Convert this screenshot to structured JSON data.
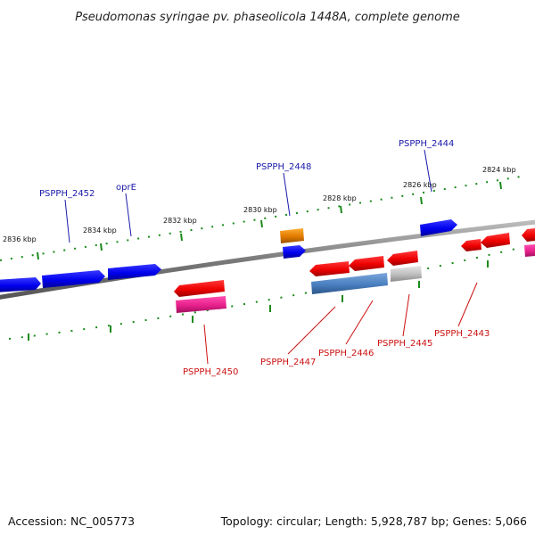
{
  "title": "Pseudomonas syringae pv. phaseolicola 1448A, complete genome",
  "footer": {
    "accession": "Accession: NC_005773",
    "summary": "Topology: circular; Length: 5,928,787 bp; Genes: 5,066"
  },
  "colors": {
    "forward_gene": "#1010e8",
    "reverse_gene": "#e81010",
    "pink_gene": "#e8208c",
    "steel_gene": "#4a7fc0",
    "grey_gene": "#bbbbbb",
    "orange_gene": "#e07a00",
    "backbone": "#777777",
    "ticks": "#1a8a1a",
    "label_fwd": "#1a1aaa",
    "label_rev": "#cc1111"
  },
  "ticks": [
    {
      "label": "2836 kbp"
    },
    {
      "label": "2834 kbp"
    },
    {
      "label": "2832 kbp"
    },
    {
      "label": "2830 kbp"
    },
    {
      "label": "2828 kbp"
    },
    {
      "label": "2826 kbp"
    },
    {
      "label": "2824 kbp"
    }
  ],
  "genes": [
    {
      "id": "fwd-1",
      "strand": "forward",
      "color": "forward_gene"
    },
    {
      "id": "fwd-2",
      "strand": "forward",
      "color": "forward_gene"
    },
    {
      "id": "fwd-3",
      "strand": "forward",
      "color": "forward_gene"
    },
    {
      "id": "fwd-4",
      "strand": "forward",
      "color": "forward_gene"
    },
    {
      "id": "fwd-5",
      "strand": "forward",
      "color": "forward_gene"
    },
    {
      "id": "orange",
      "strand": "forward",
      "color": "orange_gene"
    },
    {
      "id": "rev-2450-red",
      "strand": "reverse",
      "color": "reverse_gene"
    },
    {
      "id": "rev-2450-pink",
      "strand": "reverse",
      "color": "pink_gene"
    },
    {
      "id": "rev-2447-red",
      "strand": "reverse",
      "color": "reverse_gene"
    },
    {
      "id": "rev-2447-steel",
      "strand": "reverse",
      "color": "steel_gene"
    },
    {
      "id": "rev-2446-red",
      "strand": "reverse",
      "color": "reverse_gene"
    },
    {
      "id": "rev-2445-red",
      "strand": "reverse",
      "color": "reverse_gene"
    },
    {
      "id": "rev-2445-grey",
      "strand": "reverse",
      "color": "grey_gene"
    },
    {
      "id": "rev-2443-a",
      "strand": "reverse",
      "color": "reverse_gene"
    },
    {
      "id": "rev-2443-b",
      "strand": "reverse",
      "color": "reverse_gene"
    },
    {
      "id": "rev-edge-red",
      "strand": "reverse",
      "color": "reverse_gene"
    },
    {
      "id": "rev-edge-pink",
      "strand": "reverse",
      "color": "pink_gene"
    }
  ],
  "labels": {
    "forward": [
      "PSPPH_2452",
      "oprE",
      "PSPPH_2448",
      "PSPPH_2444"
    ],
    "reverse": [
      "PSPPH_2450",
      "PSPPH_2447",
      "PSPPH_2446",
      "PSPPH_2445",
      "PSPPH_2443"
    ]
  }
}
